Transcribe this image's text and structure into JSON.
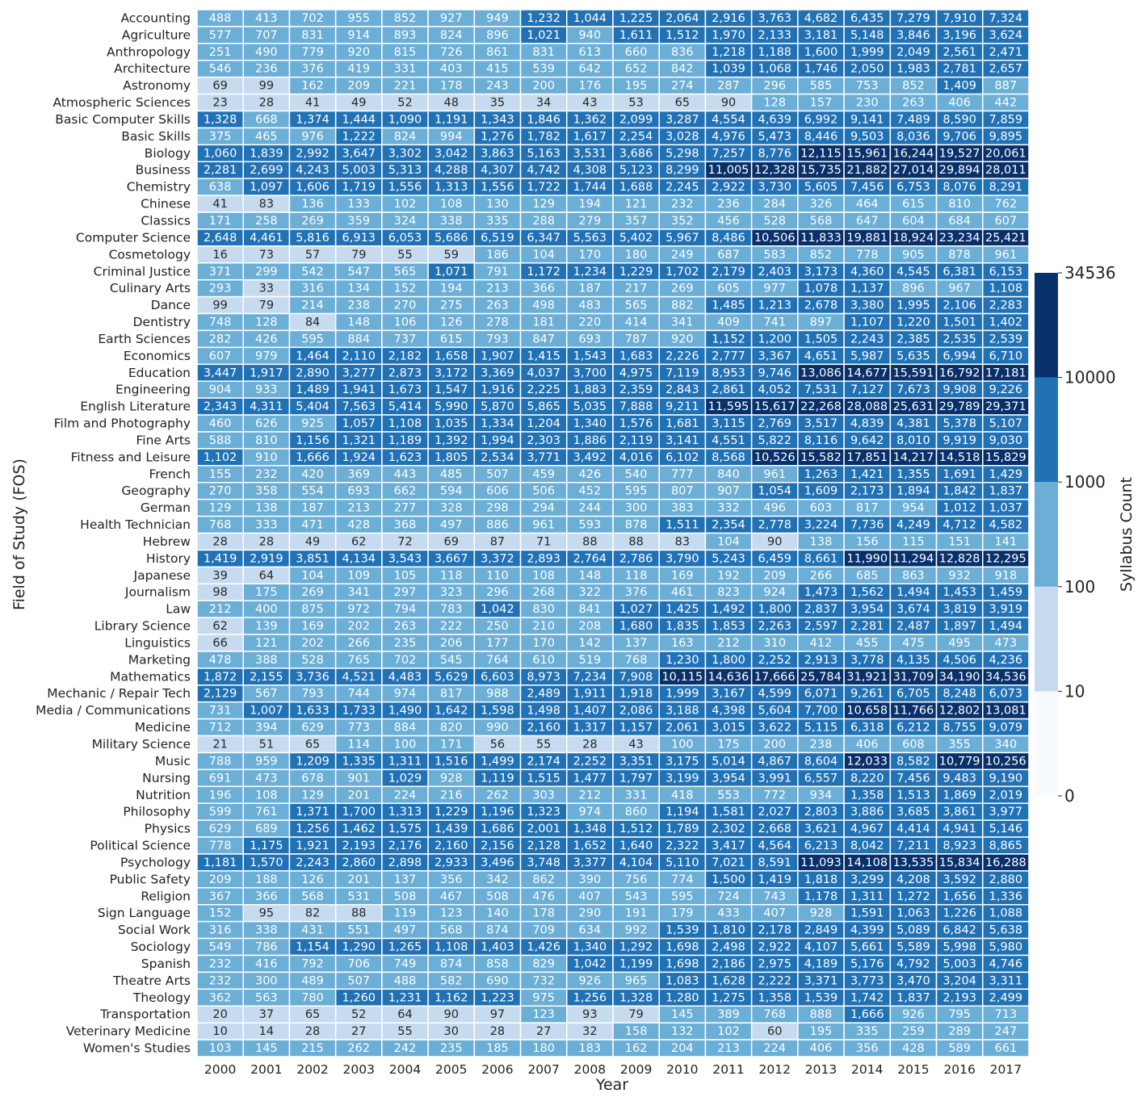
{
  "chart_data": {
    "type": "heatmap",
    "xlabel": "Year",
    "ylabel": "Field of Study (FOS)",
    "colorbar_label": "Syllabus Count",
    "colorbar_ticks": [
      "0",
      "10",
      "100",
      "1000",
      "10000",
      "34536"
    ],
    "colorbar_bins": [
      0,
      10,
      100,
      1000,
      10000,
      34536
    ],
    "colorbar_colors": [
      "#f7fbff",
      "#c6dbef",
      "#6baed6",
      "#2171b5",
      "#08306b"
    ],
    "x": [
      "2000",
      "2001",
      "2002",
      "2003",
      "2004",
      "2005",
      "2006",
      "2007",
      "2008",
      "2009",
      "2010",
      "2011",
      "2012",
      "2013",
      "2014",
      "2015",
      "2016",
      "2017"
    ],
    "y": [
      "Accounting",
      "Agriculture",
      "Anthropology",
      "Architecture",
      "Astronomy",
      "Atmospheric Sciences",
      "Basic Computer Skills",
      "Basic Skills",
      "Biology",
      "Business",
      "Chemistry",
      "Chinese",
      "Classics",
      "Computer Science",
      "Cosmetology",
      "Criminal Justice",
      "Culinary Arts",
      "Dance",
      "Dentistry",
      "Earth Sciences",
      "Economics",
      "Education",
      "Engineering",
      "English Literature",
      "Film and Photography",
      "Fine Arts",
      "Fitness and Leisure",
      "French",
      "Geography",
      "German",
      "Health Technician",
      "Hebrew",
      "History",
      "Japanese",
      "Journalism",
      "Law",
      "Library Science",
      "Linguistics",
      "Marketing",
      "Mathematics",
      "Mechanic / Repair Tech",
      "Media / Communications",
      "Medicine",
      "Military Science",
      "Music",
      "Nursing",
      "Nutrition",
      "Philosophy",
      "Physics",
      "Political Science",
      "Psychology",
      "Public Safety",
      "Religion",
      "Sign Language",
      "Social Work",
      "Sociology",
      "Spanish",
      "Theatre Arts",
      "Theology",
      "Transportation",
      "Veterinary Medicine",
      "Women's Studies"
    ],
    "values": [
      [
        488,
        413,
        702,
        955,
        852,
        927,
        949,
        1232,
        1044,
        1225,
        2064,
        2916,
        3763,
        4682,
        6435,
        7279,
        7910,
        7324
      ],
      [
        577,
        707,
        831,
        914,
        893,
        824,
        896,
        1021,
        940,
        1611,
        1512,
        1970,
        2133,
        3181,
        5148,
        3846,
        3196,
        3624
      ],
      [
        251,
        490,
        779,
        920,
        815,
        726,
        861,
        831,
        613,
        660,
        836,
        1218,
        1188,
        1600,
        1999,
        2049,
        2561,
        2471
      ],
      [
        546,
        236,
        376,
        419,
        331,
        403,
        415,
        539,
        642,
        652,
        842,
        1039,
        1068,
        1746,
        2050,
        1983,
        2781,
        2657
      ],
      [
        69,
        99,
        162,
        209,
        221,
        178,
        243,
        200,
        176,
        195,
        274,
        287,
        296,
        585,
        753,
        852,
        1409,
        887
      ],
      [
        23,
        28,
        41,
        49,
        52,
        48,
        35,
        34,
        43,
        53,
        65,
        90,
        128,
        157,
        230,
        263,
        406,
        442
      ],
      [
        1328,
        668,
        1374,
        1444,
        1090,
        1191,
        1343,
        1846,
        1362,
        2099,
        3287,
        4554,
        4639,
        6992,
        9141,
        7489,
        8590,
        7859
      ],
      [
        375,
        465,
        976,
        1222,
        824,
        994,
        1276,
        1782,
        1617,
        2254,
        3028,
        4976,
        5473,
        8446,
        9503,
        8036,
        9706,
        9895
      ],
      [
        1060,
        1839,
        2992,
        3647,
        3302,
        3042,
        3863,
        5163,
        3531,
        3686,
        5298,
        7257,
        8776,
        12115,
        15961,
        16244,
        19527,
        20061
      ],
      [
        2281,
        2699,
        4243,
        5003,
        5313,
        4288,
        4307,
        4742,
        4308,
        5123,
        8299,
        11005,
        12328,
        15735,
        21882,
        27014,
        29894,
        28011
      ],
      [
        638,
        1097,
        1606,
        1719,
        1556,
        1313,
        1556,
        1722,
        1744,
        1688,
        2245,
        2922,
        3730,
        5605,
        7456,
        6753,
        8076,
        8291
      ],
      [
        41,
        83,
        136,
        133,
        102,
        108,
        130,
        129,
        194,
        121,
        232,
        236,
        284,
        326,
        464,
        615,
        810,
        762
      ],
      [
        171,
        258,
        269,
        359,
        324,
        338,
        335,
        288,
        279,
        357,
        352,
        456,
        528,
        568,
        647,
        604,
        684,
        607
      ],
      [
        2648,
        4461,
        5816,
        6913,
        6053,
        5686,
        6519,
        6347,
        5563,
        5402,
        5967,
        8486,
        10506,
        11833,
        19881,
        18924,
        23234,
        25421
      ],
      [
        16,
        73,
        57,
        79,
        55,
        59,
        186,
        104,
        170,
        180,
        249,
        687,
        583,
        852,
        778,
        905,
        878,
        961
      ],
      [
        371,
        299,
        542,
        547,
        565,
        1071,
        791,
        1172,
        1234,
        1229,
        1702,
        2179,
        2403,
        3173,
        4360,
        4545,
        6381,
        6153
      ],
      [
        293,
        33,
        316,
        134,
        152,
        194,
        213,
        366,
        187,
        217,
        269,
        605,
        977,
        1078,
        1137,
        896,
        967,
        1108
      ],
      [
        99,
        79,
        214,
        238,
        270,
        275,
        263,
        498,
        483,
        565,
        882,
        1485,
        1213,
        2678,
        3380,
        1995,
        2106,
        2283
      ],
      [
        748,
        128,
        84,
        148,
        106,
        126,
        278,
        181,
        220,
        414,
        341,
        409,
        741,
        897,
        1107,
        1220,
        1501,
        1402
      ],
      [
        282,
        426,
        595,
        884,
        737,
        615,
        793,
        847,
        693,
        787,
        920,
        1152,
        1200,
        1505,
        2243,
        2385,
        2535,
        2539
      ],
      [
        607,
        979,
        1464,
        2110,
        2182,
        1658,
        1907,
        1415,
        1543,
        1683,
        2226,
        2777,
        3367,
        4651,
        5987,
        5635,
        6994,
        6710
      ],
      [
        3447,
        1917,
        2890,
        3277,
        2873,
        3172,
        3369,
        4037,
        3700,
        4975,
        7119,
        8953,
        9746,
        13086,
        14677,
        15591,
        16792,
        17181
      ],
      [
        904,
        933,
        1489,
        1941,
        1673,
        1547,
        1916,
        2225,
        1883,
        2359,
        2843,
        2861,
        4052,
        7531,
        7127,
        7673,
        9908,
        9226
      ],
      [
        2343,
        4311,
        5404,
        7563,
        5414,
        5990,
        5870,
        5865,
        5035,
        7888,
        9211,
        11595,
        15617,
        22268,
        28088,
        25631,
        29789,
        29371
      ],
      [
        460,
        626,
        925,
        1057,
        1108,
        1035,
        1334,
        1204,
        1340,
        1576,
        1681,
        3115,
        2769,
        3517,
        4839,
        4381,
        5378,
        5107
      ],
      [
        588,
        810,
        1156,
        1321,
        1189,
        1392,
        1994,
        2303,
        1886,
        2119,
        3141,
        4551,
        5822,
        8116,
        9642,
        8010,
        9919,
        9030
      ],
      [
        1102,
        910,
        1666,
        1924,
        1623,
        1805,
        2534,
        3771,
        3492,
        4016,
        6102,
        8568,
        10526,
        15582,
        17851,
        14217,
        14518,
        15829
      ],
      [
        155,
        232,
        420,
        369,
        443,
        485,
        507,
        459,
        426,
        540,
        777,
        840,
        961,
        1263,
        1421,
        1355,
        1691,
        1429
      ],
      [
        270,
        358,
        554,
        693,
        662,
        594,
        606,
        506,
        452,
        595,
        807,
        907,
        1054,
        1609,
        2173,
        1894,
        1842,
        1837
      ],
      [
        129,
        138,
        187,
        213,
        277,
        328,
        298,
        294,
        244,
        300,
        383,
        332,
        496,
        603,
        817,
        954,
        1012,
        1037
      ],
      [
        768,
        333,
        471,
        428,
        368,
        497,
        886,
        961,
        593,
        878,
        1511,
        2354,
        2778,
        3224,
        7736,
        4249,
        4712,
        4582
      ],
      [
        28,
        28,
        49,
        62,
        72,
        69,
        87,
        71,
        88,
        88,
        83,
        104,
        90,
        138,
        156,
        115,
        151,
        141
      ],
      [
        1419,
        2919,
        3851,
        4134,
        3543,
        3667,
        3372,
        2893,
        2764,
        2786,
        3790,
        5243,
        6459,
        8661,
        11990,
        11294,
        12828,
        12295
      ],
      [
        39,
        64,
        104,
        109,
        105,
        118,
        110,
        108,
        148,
        118,
        169,
        192,
        209,
        266,
        685,
        863,
        932,
        918
      ],
      [
        98,
        175,
        269,
        341,
        297,
        323,
        296,
        268,
        322,
        376,
        461,
        823,
        924,
        1473,
        1562,
        1494,
        1453,
        1459
      ],
      [
        212,
        400,
        875,
        972,
        794,
        783,
        1042,
        830,
        841,
        1027,
        1425,
        1492,
        1800,
        2837,
        3954,
        3674,
        3819,
        3919
      ],
      [
        62,
        139,
        169,
        202,
        263,
        222,
        250,
        210,
        208,
        1680,
        1835,
        1853,
        2263,
        2597,
        2281,
        2487,
        1897,
        1494
      ],
      [
        66,
        121,
        202,
        266,
        235,
        206,
        177,
        170,
        142,
        137,
        163,
        212,
        310,
        412,
        455,
        475,
        495,
        473
      ],
      [
        478,
        388,
        528,
        765,
        702,
        545,
        764,
        610,
        519,
        768,
        1230,
        1800,
        2252,
        2913,
        3778,
        4135,
        4506,
        4236
      ],
      [
        1872,
        2155,
        3736,
        4521,
        4483,
        5629,
        6603,
        8973,
        7234,
        7908,
        10115,
        14636,
        17666,
        25784,
        31921,
        31709,
        34190,
        34536
      ],
      [
        2129,
        567,
        793,
        744,
        974,
        817,
        988,
        2489,
        1911,
        1918,
        1999,
        3167,
        4599,
        6071,
        9261,
        6705,
        8248,
        6073
      ],
      [
        731,
        1007,
        1633,
        1733,
        1490,
        1642,
        1598,
        1498,
        1407,
        2086,
        3188,
        4398,
        5604,
        7700,
        10658,
        11766,
        12802,
        13081
      ],
      [
        712,
        394,
        629,
        773,
        884,
        820,
        990,
        2160,
        1317,
        1157,
        2061,
        3015,
        3622,
        5115,
        6318,
        6212,
        8755,
        9079
      ],
      [
        21,
        51,
        65,
        114,
        100,
        171,
        56,
        55,
        28,
        43,
        100,
        175,
        200,
        238,
        406,
        608,
        355,
        340
      ],
      [
        788,
        959,
        1209,
        1335,
        1311,
        1516,
        1499,
        2174,
        2252,
        3351,
        3175,
        5014,
        4867,
        8604,
        12033,
        8582,
        10779,
        10256
      ],
      [
        691,
        473,
        678,
        901,
        1029,
        928,
        1119,
        1515,
        1477,
        1797,
        3199,
        3954,
        3991,
        6557,
        8220,
        7456,
        9483,
        9190
      ],
      [
        196,
        108,
        129,
        201,
        224,
        216,
        262,
        303,
        212,
        331,
        418,
        553,
        772,
        934,
        1358,
        1513,
        1869,
        2019
      ],
      [
        599,
        761,
        1371,
        1700,
        1313,
        1229,
        1196,
        1323,
        974,
        860,
        1194,
        1581,
        2027,
        2803,
        3886,
        3685,
        3861,
        3977
      ],
      [
        629,
        689,
        1256,
        1462,
        1575,
        1439,
        1686,
        2001,
        1348,
        1512,
        1789,
        2302,
        2668,
        3621,
        4967,
        4414,
        4941,
        5146
      ],
      [
        778,
        1175,
        1921,
        2193,
        2176,
        2160,
        2156,
        2128,
        1652,
        1640,
        2322,
        3417,
        4564,
        6213,
        8042,
        7211,
        8923,
        8865
      ],
      [
        1181,
        1570,
        2243,
        2860,
        2898,
        2933,
        3496,
        3748,
        3377,
        4104,
        5110,
        7021,
        8591,
        11093,
        14108,
        13535,
        15834,
        16288
      ],
      [
        209,
        188,
        126,
        201,
        137,
        356,
        342,
        862,
        390,
        756,
        774,
        1500,
        1419,
        1818,
        3299,
        4208,
        3592,
        2880
      ],
      [
        367,
        366,
        568,
        531,
        508,
        467,
        508,
        476,
        407,
        543,
        595,
        724,
        743,
        1178,
        1311,
        1272,
        1656,
        1336
      ],
      [
        152,
        95,
        82,
        88,
        119,
        123,
        140,
        178,
        290,
        191,
        179,
        433,
        407,
        928,
        1591,
        1063,
        1226,
        1088
      ],
      [
        316,
        338,
        431,
        551,
        497,
        568,
        874,
        709,
        634,
        992,
        1539,
        1810,
        2178,
        2849,
        4399,
        5089,
        6842,
        5638
      ],
      [
        549,
        786,
        1154,
        1290,
        1265,
        1108,
        1403,
        1426,
        1340,
        1292,
        1698,
        2498,
        2922,
        4107,
        5661,
        5589,
        5998,
        5980
      ],
      [
        232,
        416,
        792,
        706,
        749,
        874,
        858,
        829,
        1042,
        1199,
        1698,
        2186,
        2975,
        4189,
        5176,
        4792,
        5003,
        4746
      ],
      [
        232,
        300,
        489,
        507,
        488,
        582,
        690,
        732,
        926,
        965,
        1083,
        1628,
        2222,
        3371,
        3773,
        3470,
        3204,
        3311
      ],
      [
        362,
        563,
        780,
        1260,
        1231,
        1162,
        1223,
        975,
        1256,
        1328,
        1280,
        1275,
        1358,
        1539,
        1742,
        1837,
        2193,
        2499
      ],
      [
        20,
        37,
        65,
        52,
        64,
        90,
        97,
        123,
        93,
        79,
        145,
        389,
        768,
        888,
        1666,
        926,
        795,
        713
      ],
      [
        10,
        14,
        28,
        27,
        55,
        30,
        28,
        27,
        32,
        158,
        132,
        102,
        60,
        195,
        335,
        259,
        289,
        247
      ],
      [
        103,
        145,
        215,
        262,
        242,
        235,
        185,
        180,
        183,
        162,
        204,
        213,
        224,
        406,
        356,
        428,
        589,
        661
      ]
    ]
  }
}
